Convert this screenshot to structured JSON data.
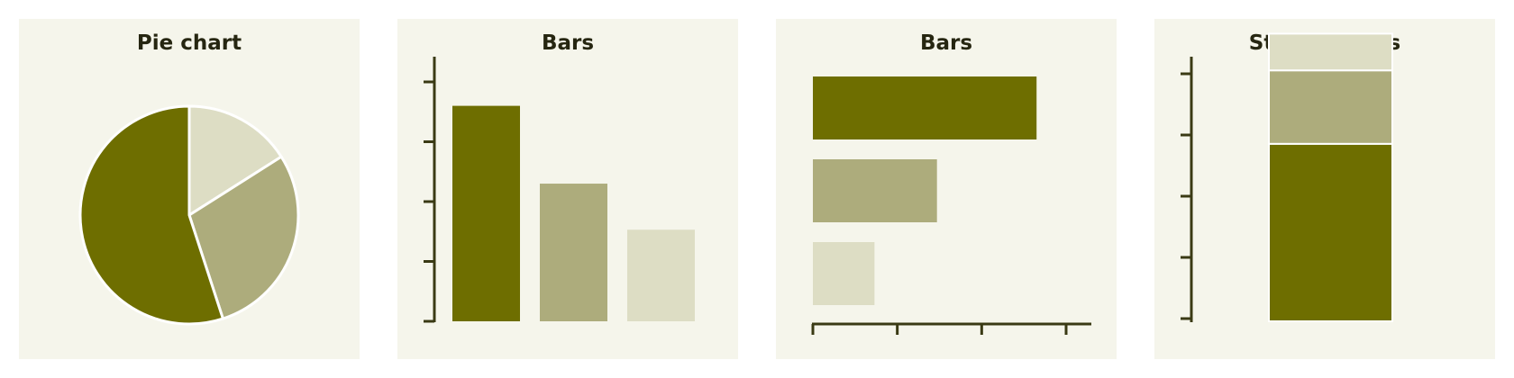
{
  "colors": {
    "panel_background": "#f5f5eb",
    "axis": "#3a3a14",
    "series": [
      "#6e6e00",
      "#adac7c",
      "#ddddc4"
    ],
    "slice_separator": "#ffffff"
  },
  "chart_data": [
    {
      "type": "pie",
      "title": "Pie chart",
      "values": [
        55,
        29,
        16
      ]
    },
    {
      "type": "bar",
      "orientation": "vertical",
      "title": "Bars",
      "values": [
        3.6,
        2.3,
        1.53
      ],
      "ylim": [
        0,
        4
      ],
      "grid": false
    },
    {
      "type": "bar",
      "orientation": "horizontal",
      "title": "Bars",
      "values": [
        2.65,
        1.47,
        0.73
      ],
      "xlim": [
        0,
        3
      ],
      "grid": false
    },
    {
      "type": "bar",
      "stacked": true,
      "title": "Stacked bars",
      "values": [
        2.9,
        1.2,
        0.6
      ],
      "ylim": [
        0,
        4.5
      ],
      "grid": false
    }
  ]
}
